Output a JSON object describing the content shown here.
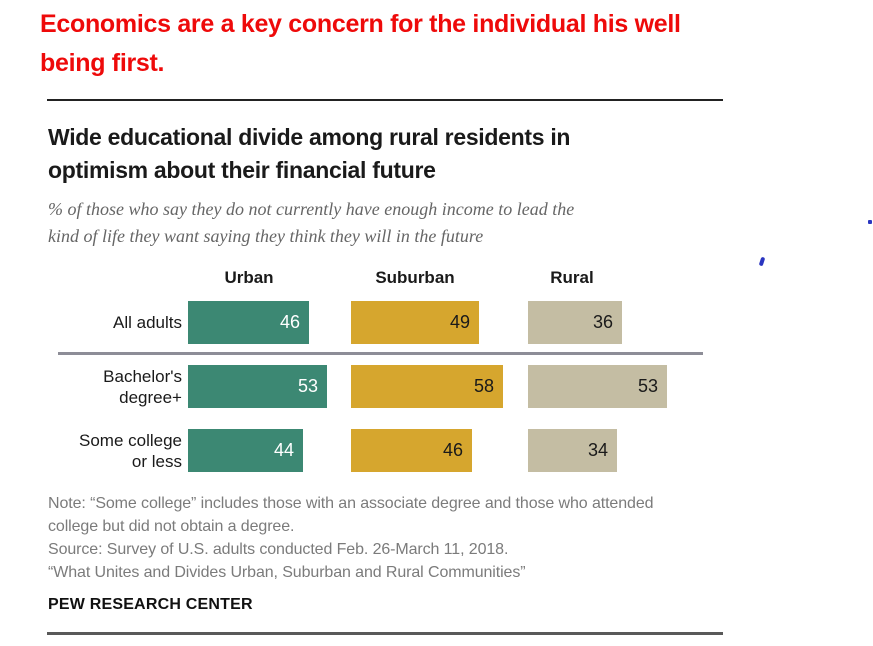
{
  "annotation": {
    "color": "#ee0a0a",
    "lines": [
      "Economics are a key concern for the individual his well",
      "being first."
    ]
  },
  "report": {
    "title_lines": [
      "Wide educational divide among rural residents in",
      "optimism about their financial future"
    ],
    "subtitle_lines": [
      "% of those who say they do not currently have enough income to lead the",
      "kind of life they want saying they think they will in the future"
    ],
    "note_lines": [
      "Note: “Some college” includes those with an associate degree and those who attended",
      "college but did not obtain a degree.",
      "Source: Survey of U.S. adults conducted Feb. 26-March 11, 2018.",
      "“What Unites and Divides Urban, Suburban and Rural Communities”"
    ],
    "brand": "PEW RESEARCH CENTER"
  },
  "chart_data": {
    "type": "bar",
    "orientation": "horizontal",
    "title": "Wide educational divide among rural residents in optimism about their financial future",
    "subtitle": "% of those who say they do not currently have enough income to lead the kind of life they want saying they think they will in the future",
    "categories": [
      "All adults",
      "Bachelor's degree+",
      "Some college or less"
    ],
    "category_label_lines": [
      [
        "All adults"
      ],
      [
        "Bachelor's",
        "degree+"
      ],
      [
        "Some college",
        "or less"
      ]
    ],
    "series": [
      {
        "name": "Urban",
        "values": [
          46,
          53,
          44
        ],
        "color": "#3c8873",
        "value_label_color": "#ffffff"
      },
      {
        "name": "Suburban",
        "values": [
          49,
          58,
          46
        ],
        "color": "#d6a62e",
        "value_label_color": "#1a1a1a"
      },
      {
        "name": "Rural",
        "values": [
          36,
          53,
          34
        ],
        "color": "#c4bda3",
        "value_label_color": "#1a1a1a"
      }
    ],
    "value_unit": "%",
    "xlim": [
      0,
      100
    ],
    "grid": false,
    "value_labels": "inside-end",
    "legend_position": "column-headers-above-bars",
    "separator_after_category_index": 0
  },
  "stray_marks": {
    "color": "#2a35c0",
    "items": [
      "dot",
      "comma"
    ]
  }
}
